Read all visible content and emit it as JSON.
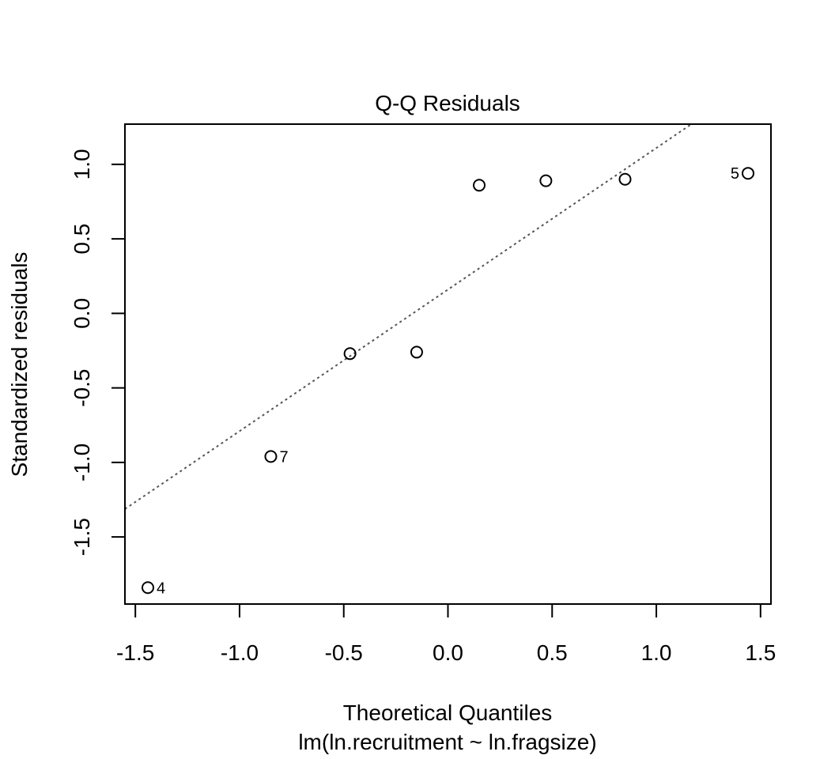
{
  "chart_data": {
    "type": "scatter",
    "title": "Q-Q Residuals",
    "xlabel": "Theoretical Quantiles",
    "subtitle": "lm(ln.recruitment ~ ln.fragsize)",
    "ylabel": "Standardized residuals",
    "xlim": [
      -1.55,
      1.55
    ],
    "ylim": [
      -1.95,
      1.27
    ],
    "xticks": [
      "-1.5",
      "-1.0",
      "-0.5",
      "0.0",
      "0.5",
      "1.0",
      "1.5"
    ],
    "yticks": [
      "-1.5",
      "-1.0",
      "-0.5",
      "0.0",
      "0.5",
      "1.0"
    ],
    "points": [
      {
        "x": -1.44,
        "y": -1.84,
        "label": "4"
      },
      {
        "x": -0.85,
        "y": -0.96,
        "label": "7"
      },
      {
        "x": -0.47,
        "y": -0.27,
        "label": ""
      },
      {
        "x": -0.15,
        "y": -0.26,
        "label": ""
      },
      {
        "x": 0.15,
        "y": 0.86,
        "label": ""
      },
      {
        "x": 0.47,
        "y": 0.89,
        "label": ""
      },
      {
        "x": 0.85,
        "y": 0.9,
        "label": ""
      },
      {
        "x": 1.44,
        "y": 0.94,
        "label": "5"
      }
    ],
    "reference_line": {
      "slope": 0.95,
      "intercept": 0.16,
      "style": "dotted",
      "color": "#555555"
    },
    "grid": false
  }
}
